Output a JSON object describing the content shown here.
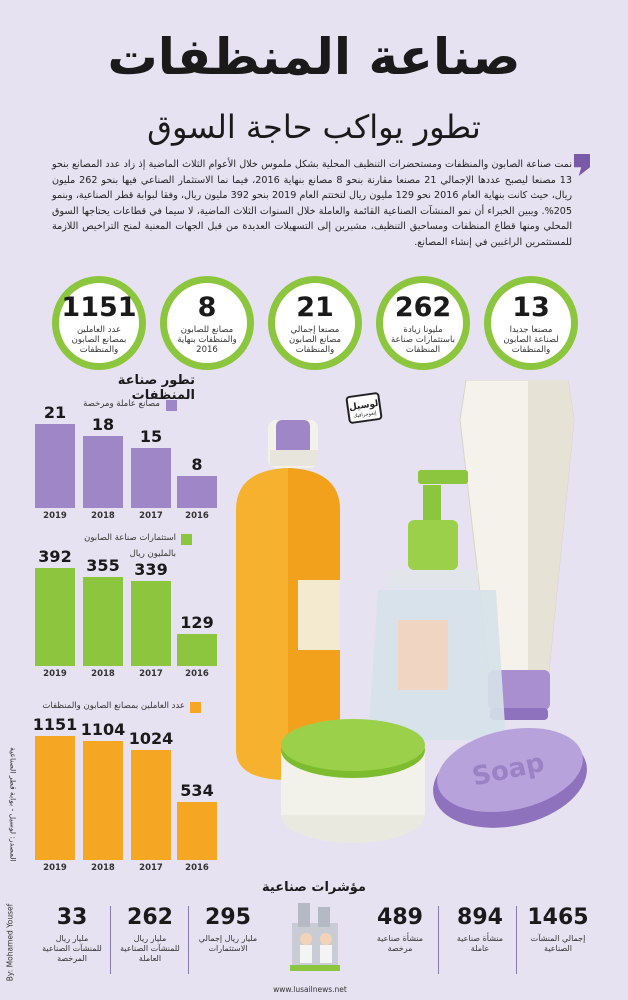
{
  "title": "صناعة المنظفات",
  "subtitle": "تطور يواكب حاجة السوق",
  "intro": "نمت صناعة الصابون والمنظفات ومستحضرات التنظيف المحلية بشكل ملموس خلال الأعوام الثلاث الماضية إذ زاد عدد المصانع بنحو 13 مصنعا ليصبح عددها الإجمالي 21 مصنعا مقارنة بنحو 8 مصانع بنهاية 2016، فيما نما الاستثمار الصناعي فيها بنحو 262 مليون ريال، حيث كانت بنهاية العام 2016 نحو 129 مليون ريال لتختتم العام 2019 بنحو 392 مليون ريال، وفقا لبوابة قطر الصناعية، وبنمو 205%. ويبين الخبراء أن نمو المنشآت الصناعية القائمة والعاملة خلال السنوات الثلاث الماضية، لا سيما في قطاعات يحتاجها السوق المحلي ومنها قطاع المنظفات ومساحيق التنظيف، مشيرين إلى التسهيلات العديدة من قبل الجهات المعنية لمنح التراخيص اللازمة للمستثمرين الراغبين في إنشاء المصانع.",
  "circles": [
    {
      "value": "13",
      "label": "مصنعا جديدا لصناعة الصابون والمنظفات"
    },
    {
      "value": "262",
      "label": "مليونا زيادة باستثمارات صناعة المنظفات"
    },
    {
      "value": "21",
      "label": "مصنعا إجمالي مصانع الصابون والمنظفات"
    },
    {
      "value": "8",
      "label": "مصانع للصابون والمنظفات بنهاية 2016"
    },
    {
      "value": "1151",
      "label": "عدد العاملين بمصانع الصابون والمنظفات"
    }
  ],
  "section_title": "تطور صناعة المنظفات",
  "badge_text": "لوسيل",
  "badge_sub": "إنفوجرافيك",
  "chart_data": [
    {
      "type": "bar",
      "legend": "مصانع عاملة ومرخصة",
      "unit": "",
      "categories": [
        "2019",
        "2018",
        "2017",
        "2016"
      ],
      "values": [
        21,
        18,
        15,
        8
      ],
      "color": "#9f86c7"
    },
    {
      "type": "bar",
      "legend": "استثمارات صناعة الصابون",
      "unit": "بالمليون ريال",
      "categories": [
        "2019",
        "2018",
        "2017",
        "2016"
      ],
      "values": [
        392,
        355,
        339,
        129
      ],
      "color": "#8cc63f"
    },
    {
      "type": "bar",
      "legend": "عدد العاملين بمصانع الصابون والمنظفات",
      "unit": "",
      "categories": [
        "2019",
        "2018",
        "2017",
        "2016"
      ],
      "values": [
        1151,
        1104,
        1024,
        534
      ],
      "color": "#f5a623"
    }
  ],
  "indicators_title": "مؤشرات صناعية",
  "indicators": [
    {
      "value": "1465",
      "label": "إجمالي المنشآت الصناعية"
    },
    {
      "value": "894",
      "label": "منشأة صناعية عاملة"
    },
    {
      "value": "489",
      "label": "منشأة صناعية مرخصة"
    },
    {
      "value": "295",
      "label": "مليار ريال إجمالي الاستثمارات"
    },
    {
      "value": "262",
      "label": "مليار ريال للمنشآت الصناعية العاملة"
    },
    {
      "value": "33",
      "label": "مليار ريال للمنشآت الصناعية المرخصة"
    }
  ],
  "source": "المصدر: لوسيل - بوابة قطر الصناعية",
  "author": "By: Mohamed Yousef",
  "website": "www.lusailnews.net",
  "colors": {
    "purple": "#9f86c7",
    "green": "#8cc63f",
    "orange": "#f5a623",
    "background": "#e7e2f1"
  }
}
